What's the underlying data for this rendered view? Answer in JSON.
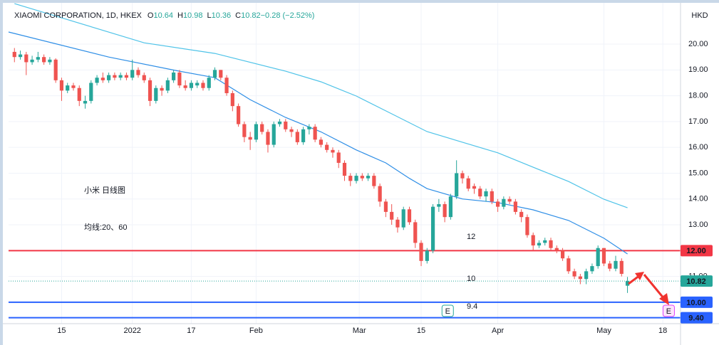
{
  "chart_data": {
    "type": "candlestick",
    "title": "XIAOMI CORPORATION, 1D, HKEX",
    "legend_values": [
      {
        "label": "O",
        "value": "10.64"
      },
      {
        "label": "H",
        "value": "10.98"
      },
      {
        "label": "L",
        "value": "10.36"
      },
      {
        "label": "C",
        "value": "10.82"
      },
      {
        "label": "",
        "value": "−0.28 (−2.52%)"
      }
    ],
    "currency": "HKD",
    "up_color": "#26a69a",
    "down_color": "#ef5350",
    "grid": true,
    "xlim": [
      -1,
      113
    ],
    "ylim": [
      9.17,
      21.71
    ],
    "yticks": [
      {
        "value": 20,
        "label": "20.00"
      },
      {
        "value": 19,
        "label": "19.00"
      },
      {
        "value": 18,
        "label": "18.00"
      },
      {
        "value": 17,
        "label": "17.00"
      },
      {
        "value": 16,
        "label": "16.00"
      },
      {
        "value": 15,
        "label": "15.00"
      },
      {
        "value": 14,
        "label": "14.00"
      },
      {
        "value": 13,
        "label": "13.00"
      },
      {
        "value": 11,
        "label": "11.00"
      }
    ],
    "xticks": [
      {
        "value": 8,
        "label": "15"
      },
      {
        "value": 20,
        "label": "2022"
      },
      {
        "value": 30,
        "label": "17"
      },
      {
        "value": 41,
        "label": "Feb"
      },
      {
        "value": 58.5,
        "label": "Mar"
      },
      {
        "value": 69,
        "label": "15"
      },
      {
        "value": 82,
        "label": "Apr"
      },
      {
        "value": 100,
        "label": "May"
      },
      {
        "value": 110,
        "label": "18"
      }
    ],
    "ohlc": [
      [
        19.7,
        19.85,
        19.3,
        19.5
      ],
      [
        19.5,
        19.75,
        19.4,
        19.6
      ],
      [
        19.6,
        19.7,
        18.8,
        19.3
      ],
      [
        19.3,
        19.55,
        19.2,
        19.4
      ],
      [
        19.4,
        19.7,
        19.3,
        19.5
      ],
      [
        19.5,
        19.6,
        19.2,
        19.3
      ],
      [
        19.3,
        19.5,
        19.2,
        19.4
      ],
      [
        19.4,
        19.45,
        18.5,
        18.6
      ],
      [
        18.6,
        18.7,
        17.8,
        18.2
      ],
      [
        18.2,
        18.5,
        18.1,
        18.4
      ],
      [
        18.4,
        18.5,
        18.2,
        18.3
      ],
      [
        18.3,
        18.4,
        17.6,
        17.8
      ],
      [
        17.7,
        18.0,
        17.5,
        17.8
      ],
      [
        17.8,
        18.6,
        17.7,
        18.5
      ],
      [
        18.5,
        18.8,
        18.4,
        18.7
      ],
      [
        18.7,
        18.9,
        18.5,
        18.6
      ],
      [
        18.6,
        18.9,
        18.5,
        18.8
      ],
      [
        18.8,
        18.9,
        18.6,
        18.7
      ],
      [
        18.7,
        18.9,
        18.6,
        18.8
      ],
      [
        18.8,
        18.9,
        18.6,
        18.7
      ],
      [
        18.7,
        19.4,
        18.6,
        19.0
      ],
      [
        19.0,
        19.1,
        18.7,
        18.8
      ],
      [
        18.8,
        18.9,
        18.5,
        18.6
      ],
      [
        18.6,
        18.7,
        17.6,
        17.8
      ],
      [
        17.8,
        18.4,
        17.7,
        18.3
      ],
      [
        18.3,
        18.4,
        18.0,
        18.2
      ],
      [
        18.2,
        18.7,
        18.1,
        18.6
      ],
      [
        18.6,
        19.0,
        18.5,
        18.9
      ],
      [
        18.9,
        19.0,
        18.3,
        18.4
      ],
      [
        18.4,
        18.6,
        18.2,
        18.3
      ],
      [
        18.3,
        18.6,
        18.2,
        18.5
      ],
      [
        18.4,
        18.6,
        18.3,
        18.5
      ],
      [
        18.5,
        18.6,
        18.2,
        18.3
      ],
      [
        18.3,
        18.8,
        18.2,
        18.7
      ],
      [
        18.7,
        19.1,
        18.6,
        19.0
      ],
      [
        19.0,
        19.0,
        18.6,
        18.7
      ],
      [
        18.7,
        18.8,
        18.0,
        18.1
      ],
      [
        18.1,
        18.2,
        17.4,
        17.6
      ],
      [
        17.6,
        17.7,
        16.8,
        16.9
      ],
      [
        16.9,
        17.0,
        16.2,
        16.4
      ],
      [
        16.4,
        16.6,
        15.9,
        16.3
      ],
      [
        16.3,
        17.0,
        16.2,
        16.9
      ],
      [
        16.9,
        17.0,
        16.5,
        16.6
      ],
      [
        16.6,
        16.7,
        15.8,
        16.1
      ],
      [
        16.1,
        17.0,
        16.0,
        16.9
      ],
      [
        16.9,
        17.1,
        16.8,
        17.0
      ],
      [
        17.0,
        17.1,
        16.6,
        16.7
      ],
      [
        16.7,
        16.8,
        16.4,
        16.6
      ],
      [
        16.6,
        16.7,
        16.1,
        16.2
      ],
      [
        16.2,
        16.8,
        16.1,
        16.7
      ],
      [
        16.7,
        16.9,
        16.5,
        16.8
      ],
      [
        16.8,
        16.9,
        16.2,
        16.3
      ],
      [
        16.3,
        16.4,
        16.0,
        16.1
      ],
      [
        16.1,
        16.2,
        15.8,
        15.9
      ],
      [
        15.9,
        16.0,
        15.6,
        15.8
      ],
      [
        15.8,
        15.9,
        15.2,
        15.4
      ],
      [
        15.4,
        15.5,
        14.7,
        14.9
      ],
      [
        14.9,
        15.0,
        14.5,
        14.7
      ],
      [
        14.7,
        15.0,
        14.6,
        14.9
      ],
      [
        14.9,
        15.0,
        14.7,
        14.8
      ],
      [
        14.8,
        15.0,
        14.7,
        14.9
      ],
      [
        14.9,
        15.0,
        14.4,
        14.5
      ],
      [
        14.5,
        14.6,
        13.7,
        13.9
      ],
      [
        13.9,
        14.0,
        13.3,
        13.5
      ],
      [
        13.5,
        13.8,
        13.0,
        13.2
      ],
      [
        13.2,
        13.3,
        12.7,
        12.9
      ],
      [
        12.9,
        13.7,
        12.8,
        13.6
      ],
      [
        13.6,
        13.7,
        13.0,
        13.1
      ],
      [
        13.1,
        13.2,
        12.1,
        12.3
      ],
      [
        12.3,
        12.4,
        11.4,
        11.6
      ],
      [
        11.6,
        12.1,
        11.5,
        12.0
      ],
      [
        12.0,
        13.8,
        11.9,
        13.7
      ],
      [
        13.7,
        14.0,
        13.5,
        13.8
      ],
      [
        13.8,
        13.9,
        13.1,
        13.3
      ],
      [
        13.3,
        14.2,
        13.2,
        14.1
      ],
      [
        14.1,
        15.5,
        14.0,
        15.0
      ],
      [
        15.0,
        15.1,
        14.6,
        14.8
      ],
      [
        14.8,
        14.9,
        14.3,
        14.4
      ],
      [
        14.5,
        14.6,
        14.2,
        14.4
      ],
      [
        14.4,
        14.5,
        14.0,
        14.1
      ],
      [
        14.1,
        14.4,
        13.9,
        14.3
      ],
      [
        14.3,
        14.4,
        13.8,
        13.9
      ],
      [
        13.9,
        14.0,
        13.5,
        13.7
      ],
      [
        13.7,
        14.1,
        13.6,
        14.0
      ],
      [
        14.0,
        14.1,
        13.8,
        13.9
      ],
      [
        13.9,
        14.0,
        13.4,
        13.5
      ],
      [
        13.5,
        13.6,
        13.1,
        13.3
      ],
      [
        13.3,
        13.4,
        12.5,
        12.6
      ],
      [
        12.6,
        12.7,
        12.0,
        12.2
      ],
      [
        12.2,
        12.4,
        12.1,
        12.3
      ],
      [
        12.3,
        12.5,
        12.2,
        12.4
      ],
      [
        12.4,
        12.5,
        12.0,
        12.1
      ],
      [
        12.1,
        12.2,
        11.9,
        12.0
      ],
      [
        12.0,
        12.1,
        11.6,
        11.7
      ],
      [
        11.7,
        11.8,
        11.1,
        11.2
      ],
      [
        11.2,
        11.3,
        10.9,
        11.0
      ],
      [
        11.0,
        11.1,
        10.7,
        10.9
      ],
      [
        10.9,
        11.3,
        10.7,
        11.2
      ],
      [
        11.2,
        11.5,
        11.1,
        11.4
      ],
      [
        11.4,
        12.2,
        11.3,
        12.1
      ],
      [
        12.1,
        12.1,
        11.4,
        11.5
      ],
      [
        11.5,
        11.6,
        11.2,
        11.3
      ],
      [
        11.3,
        11.8,
        11.2,
        11.6
      ],
      [
        11.6,
        11.7,
        11.0,
        11.1
      ],
      [
        10.64,
        10.98,
        10.36,
        10.82
      ]
    ],
    "moving_averages": [
      {
        "color": "#2e8ee6",
        "x": [
          -1,
          16,
          28,
          34,
          40,
          46,
          52,
          58,
          63,
          67,
          70,
          76,
          82,
          88,
          94,
          100,
          104
        ],
        "values": [
          20.47,
          19.5,
          18.95,
          18.7,
          17.85,
          17.16,
          16.6,
          15.9,
          15.4,
          14.8,
          14.4,
          14.0,
          13.86,
          13.58,
          13.17,
          12.48,
          11.87
        ]
      },
      {
        "color": "#4fc3e8",
        "x": [
          0,
          10,
          22,
          34,
          46,
          52,
          58,
          64,
          70,
          76,
          82,
          88,
          94,
          100,
          104
        ],
        "values": [
          21.57,
          20.88,
          20.05,
          19.64,
          18.95,
          18.54,
          17.99,
          17.3,
          16.61,
          16.2,
          15.79,
          15.23,
          14.68,
          13.99,
          13.66
        ]
      }
    ],
    "price_lines": [
      {
        "value": 12,
        "label": "12.00",
        "color": "#f23645"
      },
      {
        "value": 10,
        "label": "10.00",
        "color": "#2962ff"
      },
      {
        "value": 9.4,
        "label": "9.40",
        "color": "#2962ff"
      }
    ],
    "last_price": {
      "value": 10.82,
      "label": "10.82"
    },
    "earnings_markers": [
      {
        "x": 73.5,
        "label": "E",
        "color": "#26a69a"
      },
      {
        "x": 111,
        "label": "E",
        "color": "#e040fb"
      }
    ],
    "annotation_color": "#f0332f",
    "annotations": [
      "小米 日线图",
      "均线:20、60",
      "12",
      "10",
      "9.4"
    ]
  }
}
